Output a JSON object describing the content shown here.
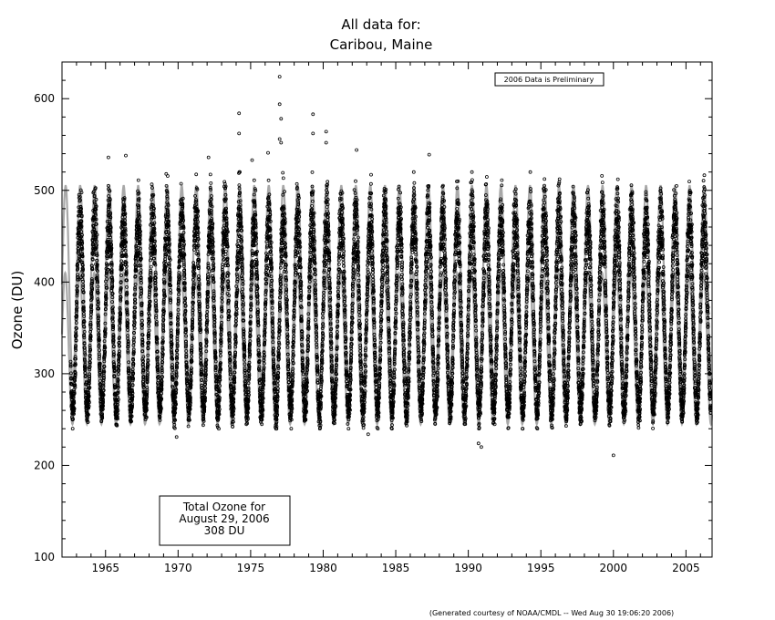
{
  "chart_data": {
    "type": "scatter",
    "title": "All data for:",
    "subtitle": "Caribou, Maine",
    "xlabel": "",
    "ylabel": "Ozone (DU)",
    "xlim": [
      1962.0,
      2006.8
    ],
    "ylim": [
      100,
      640
    ],
    "xticks": [
      1965,
      1970,
      1975,
      1980,
      1985,
      1990,
      1995,
      2000,
      2005
    ],
    "yticks": [
      100,
      200,
      300,
      400,
      500,
      600
    ],
    "grid": false,
    "legend": "none",
    "series": [
      {
        "kind": "scatter",
        "color": "#000000",
        "description_points": "daily total ozone observations",
        "x_start": 1962.6,
        "x_end": 2006.7,
        "annual_cycle": {
          "peak_month": 3.5,
          "min_month": 10.0,
          "typical_min": 260,
          "typical_max": 470
        },
        "outliers": [
          {
            "x": 1965.2,
            "y": 536
          },
          {
            "x": 1966.4,
            "y": 538
          },
          {
            "x": 1972.1,
            "y": 536
          },
          {
            "x": 1974.2,
            "y": 584
          },
          {
            "x": 1974.2,
            "y": 562
          },
          {
            "x": 1975.1,
            "y": 533
          },
          {
            "x": 1976.2,
            "y": 541
          },
          {
            "x": 1977.0,
            "y": 624
          },
          {
            "x": 1977.0,
            "y": 594
          },
          {
            "x": 1977.1,
            "y": 578
          },
          {
            "x": 1977.0,
            "y": 556
          },
          {
            "x": 1977.1,
            "y": 552
          },
          {
            "x": 1979.3,
            "y": 583
          },
          {
            "x": 1979.3,
            "y": 562
          },
          {
            "x": 1980.2,
            "y": 564
          },
          {
            "x": 1980.2,
            "y": 552
          },
          {
            "x": 1982.3,
            "y": 544
          },
          {
            "x": 1987.3,
            "y": 539
          },
          {
            "x": 1969.9,
            "y": 231
          },
          {
            "x": 1983.1,
            "y": 234
          },
          {
            "x": 1990.7,
            "y": 224
          },
          {
            "x": 1990.9,
            "y": 220
          },
          {
            "x": 2000.0,
            "y": 211
          }
        ]
      },
      {
        "kind": "climatology-band",
        "color": "#a8a8a8",
        "description_points": "mean seasonal cycle envelope",
        "upper_band": {
          "min": 290,
          "max": 505
        },
        "lower_band": {
          "min": 245,
          "max": 410
        }
      }
    ],
    "annotations": {
      "preliminary": "2006 Data is Preliminary",
      "total_ozone_lines": [
        "Total Ozone for",
        "August 29, 2006",
        "308 DU"
      ],
      "credit": "(Generated courtesy of NOAA/CMDL -- Wed Aug 30 19:06:20 2006)"
    }
  }
}
